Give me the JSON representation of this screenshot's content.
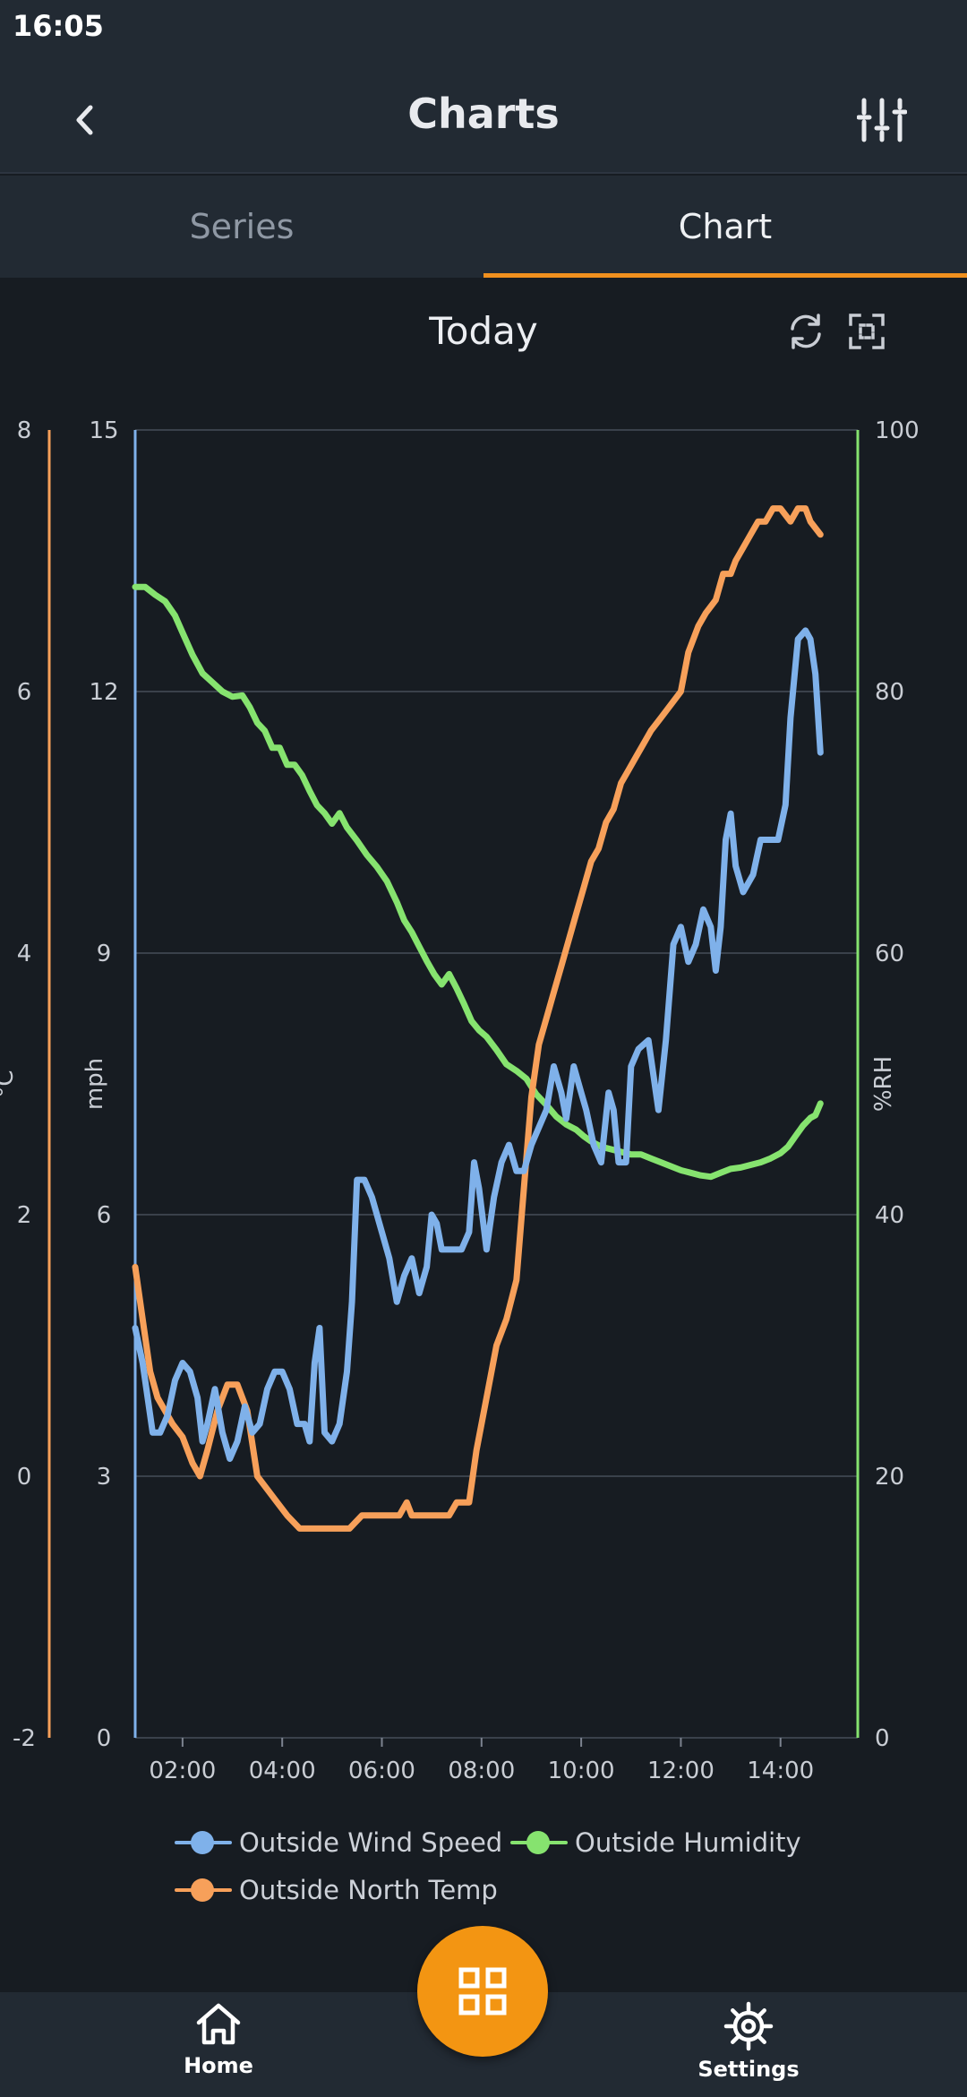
{
  "status_bar": {
    "time": "16:05"
  },
  "app_bar": {
    "title": "Charts",
    "back_icon": "chevron-left-icon",
    "filter_icon": "sliders-icon"
  },
  "tabs": [
    {
      "label": "Series",
      "selected": false
    },
    {
      "label": "Chart",
      "selected": true
    }
  ],
  "chart_header": {
    "period": "Today",
    "refresh_icon": "refresh-icon",
    "fullscreen_icon": "fullscreen-icon"
  },
  "colors": {
    "wind": "#7fb1ea",
    "temp": "#f7a05a",
    "humidity": "#86e36f",
    "accent": "#f0901e",
    "fab": "#f39512"
  },
  "chart_data": {
    "type": "line",
    "title": "",
    "x_unit": "hours",
    "xlim": [
      1.05,
      15.55
    ],
    "x_ticks": [
      {
        "v": 2,
        "label": "02:00"
      },
      {
        "v": 4,
        "label": "04:00"
      },
      {
        "v": 6,
        "label": "06:00"
      },
      {
        "v": 8,
        "label": "08:00"
      },
      {
        "v": 10,
        "label": "10:00"
      },
      {
        "v": 12,
        "label": "12:00"
      },
      {
        "v": 14,
        "label": "14:00"
      }
    ],
    "grid": true,
    "legend_position": "bottom",
    "axes": [
      {
        "id": "c",
        "label": "°C",
        "ylim": [
          -2,
          8
        ],
        "ticks": [
          "-2",
          "0",
          "2",
          "4",
          "6",
          "8"
        ]
      },
      {
        "id": "mph",
        "label": "mph",
        "ylim": [
          0,
          15
        ],
        "ticks": [
          "0",
          "3",
          "6",
          "9",
          "12",
          "15"
        ]
      },
      {
        "id": "rh",
        "label": "%RH",
        "ylim": [
          0,
          100
        ],
        "ticks": [
          "0",
          "20",
          "40",
          "60",
          "80",
          "100"
        ]
      }
    ],
    "series": [
      {
        "name": "Outside Wind Speed",
        "axis": "mph",
        "color": "#7fb1ea",
        "points": [
          [
            1.05,
            4.7
          ],
          [
            1.2,
            4.3
          ],
          [
            1.3,
            3.9
          ],
          [
            1.4,
            3.5
          ],
          [
            1.55,
            3.5
          ],
          [
            1.7,
            3.7
          ],
          [
            1.85,
            4.1
          ],
          [
            2.0,
            4.3
          ],
          [
            2.15,
            4.2
          ],
          [
            2.3,
            3.9
          ],
          [
            2.4,
            3.4
          ],
          [
            2.5,
            3.6
          ],
          [
            2.65,
            4.0
          ],
          [
            2.8,
            3.5
          ],
          [
            2.95,
            3.2
          ],
          [
            3.1,
            3.4
          ],
          [
            3.25,
            3.8
          ],
          [
            3.4,
            3.5
          ],
          [
            3.55,
            3.6
          ],
          [
            3.7,
            4.0
          ],
          [
            3.85,
            4.2
          ],
          [
            4.0,
            4.2
          ],
          [
            4.15,
            4.0
          ],
          [
            4.3,
            3.6
          ],
          [
            4.45,
            3.6
          ],
          [
            4.55,
            3.4
          ],
          [
            4.65,
            4.3
          ],
          [
            4.75,
            4.7
          ],
          [
            4.85,
            3.5
          ],
          [
            5.0,
            3.4
          ],
          [
            5.15,
            3.6
          ],
          [
            5.3,
            4.2
          ],
          [
            5.4,
            5.0
          ],
          [
            5.5,
            6.4
          ],
          [
            5.65,
            6.4
          ],
          [
            5.8,
            6.2
          ],
          [
            6.0,
            5.8
          ],
          [
            6.15,
            5.5
          ],
          [
            6.3,
            5.0
          ],
          [
            6.45,
            5.3
          ],
          [
            6.6,
            5.5
          ],
          [
            6.75,
            5.1
          ],
          [
            6.9,
            5.4
          ],
          [
            7.0,
            6.0
          ],
          [
            7.1,
            5.9
          ],
          [
            7.2,
            5.6
          ],
          [
            7.4,
            5.6
          ],
          [
            7.6,
            5.6
          ],
          [
            7.75,
            5.8
          ],
          [
            7.85,
            6.6
          ],
          [
            7.95,
            6.3
          ],
          [
            8.1,
            5.6
          ],
          [
            8.25,
            6.2
          ],
          [
            8.4,
            6.6
          ],
          [
            8.55,
            6.8
          ],
          [
            8.7,
            6.5
          ],
          [
            8.85,
            6.5
          ],
          [
            9.0,
            6.8
          ],
          [
            9.15,
            7.0
          ],
          [
            9.3,
            7.2
          ],
          [
            9.45,
            7.7
          ],
          [
            9.6,
            7.4
          ],
          [
            9.7,
            7.1
          ],
          [
            9.85,
            7.7
          ],
          [
            10.0,
            7.4
          ],
          [
            10.1,
            7.2
          ],
          [
            10.25,
            6.8
          ],
          [
            10.4,
            6.6
          ],
          [
            10.55,
            7.4
          ],
          [
            10.65,
            7.2
          ],
          [
            10.75,
            6.6
          ],
          [
            10.9,
            6.6
          ],
          [
            11.0,
            7.7
          ],
          [
            11.15,
            7.9
          ],
          [
            11.35,
            8.0
          ],
          [
            11.45,
            7.6
          ],
          [
            11.55,
            7.2
          ],
          [
            11.7,
            8.0
          ],
          [
            11.85,
            9.1
          ],
          [
            12.0,
            9.3
          ],
          [
            12.15,
            8.9
          ],
          [
            12.3,
            9.1
          ],
          [
            12.45,
            9.5
          ],
          [
            12.6,
            9.3
          ],
          [
            12.7,
            8.8
          ],
          [
            12.8,
            9.3
          ],
          [
            12.9,
            10.3
          ],
          [
            13.0,
            10.6
          ],
          [
            13.1,
            10.0
          ],
          [
            13.25,
            9.7
          ],
          [
            13.45,
            9.9
          ],
          [
            13.6,
            10.3
          ],
          [
            13.8,
            10.3
          ],
          [
            13.95,
            10.3
          ],
          [
            14.1,
            10.7
          ],
          [
            14.2,
            11.7
          ],
          [
            14.35,
            12.6
          ],
          [
            14.5,
            12.7
          ],
          [
            14.6,
            12.6
          ],
          [
            14.7,
            12.2
          ],
          [
            14.8,
            11.3
          ]
        ]
      },
      {
        "name": "Outside North Temp",
        "axis": "c",
        "color": "#f7a05a",
        "points": [
          [
            1.05,
            1.6
          ],
          [
            1.2,
            1.2
          ],
          [
            1.35,
            0.8
          ],
          [
            1.5,
            0.6
          ],
          [
            1.65,
            0.5
          ],
          [
            1.8,
            0.4
          ],
          [
            2.0,
            0.3
          ],
          [
            2.2,
            0.1
          ],
          [
            2.35,
            0.0
          ],
          [
            2.5,
            0.2
          ],
          [
            2.7,
            0.5
          ],
          [
            2.9,
            0.7
          ],
          [
            3.1,
            0.7
          ],
          [
            3.3,
            0.5
          ],
          [
            3.5,
            0.0
          ],
          [
            3.7,
            -0.1
          ],
          [
            3.9,
            -0.2
          ],
          [
            4.1,
            -0.3
          ],
          [
            4.35,
            -0.4
          ],
          [
            4.6,
            -0.4
          ],
          [
            4.85,
            -0.4
          ],
          [
            5.1,
            -0.4
          ],
          [
            5.35,
            -0.4
          ],
          [
            5.6,
            -0.3
          ],
          [
            5.85,
            -0.3
          ],
          [
            6.1,
            -0.3
          ],
          [
            6.35,
            -0.3
          ],
          [
            6.5,
            -0.2
          ],
          [
            6.6,
            -0.3
          ],
          [
            6.85,
            -0.3
          ],
          [
            7.1,
            -0.3
          ],
          [
            7.35,
            -0.3
          ],
          [
            7.5,
            -0.2
          ],
          [
            7.75,
            -0.2
          ],
          [
            7.9,
            0.2
          ],
          [
            8.1,
            0.6
          ],
          [
            8.3,
            1.0
          ],
          [
            8.5,
            1.2
          ],
          [
            8.7,
            1.5
          ],
          [
            8.85,
            2.2
          ],
          [
            9.0,
            2.9
          ],
          [
            9.15,
            3.3
          ],
          [
            9.3,
            3.5
          ],
          [
            9.45,
            3.7
          ],
          [
            9.6,
            3.9
          ],
          [
            9.75,
            4.1
          ],
          [
            9.9,
            4.3
          ],
          [
            10.05,
            4.5
          ],
          [
            10.2,
            4.7
          ],
          [
            10.35,
            4.8
          ],
          [
            10.5,
            5.0
          ],
          [
            10.65,
            5.1
          ],
          [
            10.8,
            5.3
          ],
          [
            10.95,
            5.4
          ],
          [
            11.1,
            5.5
          ],
          [
            11.25,
            5.6
          ],
          [
            11.4,
            5.7
          ],
          [
            11.6,
            5.8
          ],
          [
            11.8,
            5.9
          ],
          [
            12.0,
            6.0
          ],
          [
            12.15,
            6.3
          ],
          [
            12.35,
            6.5
          ],
          [
            12.5,
            6.6
          ],
          [
            12.7,
            6.7
          ],
          [
            12.85,
            6.9
          ],
          [
            13.0,
            6.9
          ],
          [
            13.1,
            7.0
          ],
          [
            13.25,
            7.1
          ],
          [
            13.4,
            7.2
          ],
          [
            13.55,
            7.3
          ],
          [
            13.7,
            7.3
          ],
          [
            13.85,
            7.4
          ],
          [
            14.0,
            7.4
          ],
          [
            14.2,
            7.3
          ],
          [
            14.35,
            7.4
          ],
          [
            14.5,
            7.4
          ],
          [
            14.6,
            7.3
          ],
          [
            14.8,
            7.2
          ]
        ]
      },
      {
        "name": "Outside Humidity",
        "axis": "rh",
        "color": "#86e36f",
        "points": [
          [
            1.05,
            88.0
          ],
          [
            1.25,
            88.0
          ],
          [
            1.45,
            87.4
          ],
          [
            1.65,
            86.9
          ],
          [
            1.85,
            85.8
          ],
          [
            2.0,
            84.5
          ],
          [
            2.2,
            82.8
          ],
          [
            2.4,
            81.4
          ],
          [
            2.6,
            80.7
          ],
          [
            2.8,
            80.0
          ],
          [
            3.0,
            79.6
          ],
          [
            3.2,
            79.7
          ],
          [
            3.35,
            78.8
          ],
          [
            3.5,
            77.6
          ],
          [
            3.65,
            77.0
          ],
          [
            3.8,
            75.7
          ],
          [
            3.95,
            75.7
          ],
          [
            4.1,
            74.4
          ],
          [
            4.25,
            74.4
          ],
          [
            4.4,
            73.6
          ],
          [
            4.55,
            72.4
          ],
          [
            4.7,
            71.3
          ],
          [
            4.85,
            70.7
          ],
          [
            5.0,
            69.9
          ],
          [
            5.15,
            70.7
          ],
          [
            5.3,
            69.6
          ],
          [
            5.5,
            68.6
          ],
          [
            5.7,
            67.5
          ],
          [
            5.9,
            66.6
          ],
          [
            6.1,
            65.5
          ],
          [
            6.3,
            63.9
          ],
          [
            6.45,
            62.5
          ],
          [
            6.6,
            61.6
          ],
          [
            6.75,
            60.5
          ],
          [
            6.9,
            59.4
          ],
          [
            7.05,
            58.4
          ],
          [
            7.2,
            57.6
          ],
          [
            7.35,
            58.4
          ],
          [
            7.5,
            57.3
          ],
          [
            7.65,
            56.1
          ],
          [
            7.8,
            54.8
          ],
          [
            7.95,
            54.1
          ],
          [
            8.1,
            53.6
          ],
          [
            8.3,
            52.6
          ],
          [
            8.5,
            51.5
          ],
          [
            8.7,
            51.0
          ],
          [
            8.9,
            50.4
          ],
          [
            9.1,
            49.2
          ],
          [
            9.3,
            48.4
          ],
          [
            9.5,
            47.5
          ],
          [
            9.7,
            46.9
          ],
          [
            9.9,
            46.5
          ],
          [
            10.05,
            46.0
          ],
          [
            10.2,
            45.6
          ],
          [
            10.4,
            45.2
          ],
          [
            10.6,
            45.0
          ],
          [
            10.8,
            44.8
          ],
          [
            11.0,
            44.6
          ],
          [
            11.2,
            44.6
          ],
          [
            11.4,
            44.3
          ],
          [
            11.6,
            44.0
          ],
          [
            11.8,
            43.7
          ],
          [
            12.0,
            43.4
          ],
          [
            12.2,
            43.2
          ],
          [
            12.4,
            43.0
          ],
          [
            12.6,
            42.9
          ],
          [
            12.8,
            43.2
          ],
          [
            13.0,
            43.5
          ],
          [
            13.2,
            43.6
          ],
          [
            13.4,
            43.8
          ],
          [
            13.6,
            44.0
          ],
          [
            13.8,
            44.3
          ],
          [
            14.0,
            44.7
          ],
          [
            14.15,
            45.2
          ],
          [
            14.3,
            46.0
          ],
          [
            14.45,
            46.8
          ],
          [
            14.6,
            47.4
          ],
          [
            14.7,
            47.6
          ],
          [
            14.8,
            48.5
          ]
        ]
      }
    ]
  },
  "legend": [
    {
      "label": "Outside Wind Speed",
      "color": "#7fb1ea"
    },
    {
      "label": "Outside Humidity",
      "color": "#86e36f"
    },
    {
      "label": "Outside North Temp",
      "color": "#f7a05a"
    }
  ],
  "bottom_nav": {
    "home": {
      "label": "Home",
      "icon": "home-icon"
    },
    "settings": {
      "label": "Settings",
      "icon": "gear-icon"
    },
    "fab_icon": "grid-icon"
  }
}
